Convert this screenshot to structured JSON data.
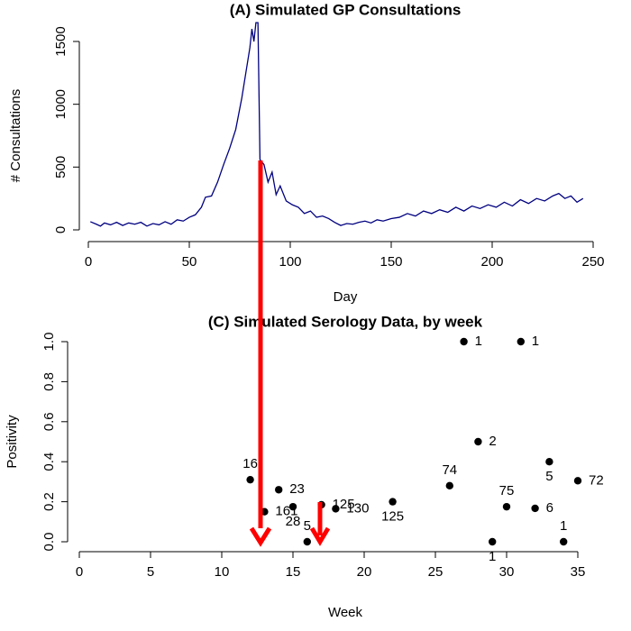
{
  "chart_data": [
    {
      "type": "line",
      "title": "(A) Simulated GP Consultations",
      "xlabel": "Day",
      "ylabel": "# Consultations",
      "series": [
        {
          "color": "#000080",
          "x": [
            1,
            4,
            6,
            8,
            11,
            14,
            17,
            20,
            23,
            26,
            29,
            32,
            35,
            38,
            41,
            44,
            47,
            50,
            53,
            56,
            58,
            61,
            64,
            67,
            70,
            73,
            76,
            78,
            80,
            81,
            82,
            83,
            84,
            85,
            87,
            89,
            91,
            93,
            95,
            98,
            101,
            104,
            107,
            110,
            113,
            116,
            119,
            122,
            125,
            128,
            131,
            134,
            137,
            140,
            143,
            146,
            150,
            154,
            158,
            162,
            166,
            170,
            174,
            178,
            182,
            186,
            190,
            194,
            198,
            202,
            206,
            210,
            214,
            218,
            222,
            226,
            230,
            233,
            236,
            239,
            242,
            245
          ],
          "values": [
            65,
            45,
            30,
            55,
            40,
            60,
            35,
            55,
            45,
            60,
            30,
            50,
            40,
            65,
            45,
            80,
            70,
            100,
            120,
            180,
            260,
            270,
            380,
            520,
            650,
            800,
            1050,
            1250,
            1450,
            1600,
            1500,
            1650,
            1650,
            560,
            520,
            380,
            460,
            280,
            350,
            230,
            200,
            180,
            130,
            150,
            100,
            110,
            90,
            60,
            35,
            50,
            45,
            60,
            70,
            55,
            80,
            70,
            90,
            100,
            130,
            110,
            150,
            130,
            160,
            140,
            180,
            150,
            190,
            170,
            200,
            180,
            220,
            190,
            240,
            210,
            250,
            230,
            270,
            290,
            250,
            270,
            220,
            250
          ]
        }
      ],
      "xlim": [
        0,
        250
      ],
      "xticks": [
        0,
        50,
        100,
        150,
        200,
        250
      ],
      "ylim": [
        0,
        1500
      ],
      "yticks": [
        0,
        500,
        1000,
        1500
      ]
    },
    {
      "type": "scatter",
      "title": "(C) Simulated Serology Data, by week",
      "xlabel": "Week",
      "ylabel": "Positivity",
      "series": [
        {
          "color": "#000000",
          "x": [
            12,
            13,
            14,
            15,
            16,
            17,
            18,
            22,
            26,
            27,
            28,
            29,
            30,
            31,
            32,
            33,
            34,
            35
          ],
          "values": [
            0.31,
            0.15,
            0.26,
            0.175,
            0.0,
            0.185,
            0.165,
            0.2,
            0.28,
            1.0,
            0.5,
            0.0,
            0.175,
            1.0,
            0.167,
            0.4,
            0.0,
            0.305
          ],
          "point_labels": [
            "16",
            "161",
            "23",
            "28",
            "5",
            "125",
            "130",
            "125",
            "74",
            "1",
            "2",
            "1",
            "75",
            "1",
            "6",
            "5",
            "1",
            "72"
          ],
          "label_color": "#ff0000"
        }
      ],
      "xlim": [
        0,
        35
      ],
      "xticks": [
        0,
        5,
        10,
        15,
        20,
        25,
        30,
        35
      ],
      "ylim": [
        0,
        1
      ],
      "yticks": [
        {
          "value": 0,
          "label": "0.0"
        },
        0.2,
        0.4,
        0.6,
        0.8,
        {
          "value": 1,
          "label": "1.0"
        }
      ]
    }
  ]
}
